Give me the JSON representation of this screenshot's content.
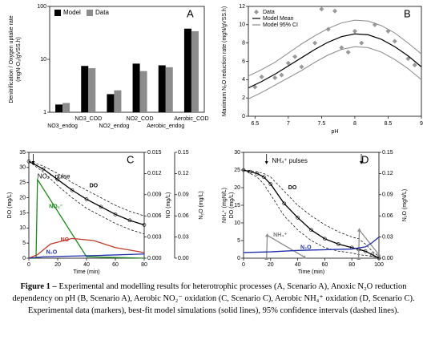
{
  "chart_data": [
    {
      "type": "bar",
      "label": "A",
      "log_y": true,
      "ylabel": [
        "Denitrification / Oxygen uptake rate",
        "(mgN-O₂/gVSS.h)"
      ],
      "categories": [
        "NO3_endog",
        "NO3_COD",
        "NO2_endog",
        "NO2_COD",
        "Aerobic_endog",
        "Aerobic_COD"
      ],
      "series": [
        {
          "name": "Model",
          "color": "#000000",
          "values": [
            1.4,
            7.5,
            2.2,
            8.3,
            7.7,
            38
          ]
        },
        {
          "name": "Data",
          "color": "#8c8c8c",
          "values": [
            1.5,
            6.8,
            2.6,
            6.0,
            7.1,
            34
          ]
        }
      ],
      "ylim": [
        1,
        100
      ],
      "yticks": [
        1,
        10,
        100
      ],
      "legend": "top-left"
    },
    {
      "type": "scatter",
      "label": "B",
      "xlabel": "pH",
      "ylabel": [
        "Maximum N₂O reduction rate (mgN/gVSS.h)"
      ],
      "xlim": [
        6.4,
        9.0
      ],
      "xticks": [
        6.5,
        7,
        7.5,
        8,
        8.5,
        9
      ],
      "ylim": [
        0,
        12
      ],
      "yticks": [
        0,
        2,
        4,
        6,
        8,
        10,
        12
      ],
      "series": [
        {
          "name": "Data",
          "color": "#999999",
          "marker": "diamond",
          "x": [
            6.5,
            6.6,
            6.8,
            6.9,
            7.0,
            7.1,
            7.2,
            7.4,
            7.5,
            7.6,
            7.7,
            7.8,
            7.9,
            8.0,
            8.1,
            8.3,
            8.5,
            8.6,
            8.8,
            8.9
          ],
          "values": [
            3.2,
            4.3,
            4.2,
            4.5,
            5.8,
            6.5,
            5.4,
            8.0,
            11.7,
            9.5,
            11.5,
            7.5,
            7.0,
            9.3,
            8.0,
            10.0,
            9.3,
            8.2,
            6.3,
            5.6
          ]
        },
        {
          "name": "Model Mean",
          "color": "#000000",
          "x": [
            6.4,
            6.6,
            6.8,
            7.0,
            7.2,
            7.4,
            7.6,
            7.8,
            8.0,
            8.2,
            8.4,
            8.6,
            8.8,
            9.0
          ],
          "values": [
            3.1,
            3.8,
            4.6,
            5.5,
            6.4,
            7.3,
            8.1,
            8.7,
            9.0,
            8.9,
            8.4,
            7.6,
            6.6,
            5.4
          ]
        },
        {
          "name": "Model 95% CI",
          "color": "#888888",
          "x": [
            6.4,
            6.6,
            6.8,
            7.0,
            7.2,
            7.4,
            7.6,
            7.8,
            8.0,
            8.2,
            8.4,
            8.6,
            8.8,
            9.0
          ],
          "upper": [
            4.4,
            5.1,
            5.9,
            6.9,
            7.9,
            8.8,
            9.6,
            10.2,
            10.5,
            10.4,
            9.9,
            9.1,
            8.0,
            6.8
          ],
          "lower": [
            1.9,
            2.6,
            3.4,
            4.2,
            5.0,
            5.9,
            6.7,
            7.3,
            7.6,
            7.5,
            7.0,
            6.2,
            5.2,
            4.0
          ]
        }
      ],
      "legend": "top-left"
    },
    {
      "type": "timeseries",
      "label": "C",
      "xlabel": "Time (min)",
      "ylabel": [
        "DO (mg/L)"
      ],
      "y2label": "NO (mg/L)",
      "y3label": "N₂O (mg/L)",
      "xlim": [
        0,
        80
      ],
      "xticks": [
        0,
        20,
        40,
        60,
        80
      ],
      "ylim": [
        0,
        35
      ],
      "yticks": [
        0,
        5,
        10,
        15,
        20,
        25,
        30,
        35
      ],
      "y2lim": [
        0,
        0.015
      ],
      "y2ticks": [
        {
          "value": 0,
          "label": "0.000"
        },
        0.003,
        0.006,
        0.009,
        0.012,
        0.015
      ],
      "y3lim": [
        0,
        0.15
      ],
      "y3ticks": [
        {
          "value": 0,
          "label": "0.00"
        },
        0.03,
        0.06,
        0.09,
        0.12,
        0.15
      ],
      "annotations": [
        "NO₂⁻ pulse",
        "DO",
        "NO₂⁻",
        "NO",
        "N₂O"
      ],
      "series": [
        {
          "color": "#000000",
          "marker": "circle",
          "x": [
            0,
            10,
            20,
            30,
            40,
            50,
            60,
            70,
            80
          ],
          "values": [
            32,
            29.5,
            26,
            22.5,
            19.5,
            17,
            14.5,
            12.5,
            11
          ]
        },
        {
          "color": "#000000",
          "dashed": true,
          "x": [
            0,
            10,
            20,
            30,
            40,
            50,
            60,
            70,
            80
          ],
          "values": [
            32,
            30.5,
            28,
            25,
            22.5,
            20,
            17.5,
            15.5,
            14
          ]
        },
        {
          "color": "#000000",
          "dashed": true,
          "x": [
            0,
            10,
            20,
            30,
            40,
            50,
            60,
            70,
            80
          ],
          "values": [
            32,
            28.5,
            24,
            20,
            16.5,
            14,
            11.5,
            9.5,
            8
          ]
        },
        {
          "color": "#1a8a1a",
          "x": [
            0,
            5,
            6,
            40,
            80
          ],
          "values": [
            0,
            0,
            26,
            0.5,
            0
          ]
        },
        {
          "color": "#c0392b",
          "axis": "y2",
          "x": [
            0,
            6,
            15,
            30,
            45,
            60,
            80
          ],
          "values": [
            0,
            0.0005,
            0.002,
            0.0028,
            0.0025,
            0.0015,
            0.0008
          ]
        },
        {
          "color": "#1f2fa8",
          "axis": "y3",
          "x": [
            0,
            10,
            30,
            50,
            80
          ],
          "values": [
            0,
            0.002,
            0.003,
            0.004,
            0.006
          ]
        }
      ]
    },
    {
      "type": "timeseries",
      "label": "D",
      "xlabel": "Time (min)",
      "ylabel": [
        "NH₄⁺ (mgN/L)",
        "DO (mg/L)"
      ],
      "y2label": "N₂O (mgN/L)",
      "xlim": [
        0,
        100
      ],
      "xticks": [
        0,
        20,
        40,
        60,
        80,
        100
      ],
      "ylim": [
        0,
        30
      ],
      "yticks": [
        0,
        5,
        10,
        15,
        20,
        25,
        30
      ],
      "y2lim": [
        0,
        0.15
      ],
      "y2ticks": [
        {
          "value": 0,
          "label": "0.00"
        },
        0.03,
        0.06,
        0.09,
        0.12,
        0.15
      ],
      "annotations": [
        "NH₄⁺ pulses",
        "DO",
        "NH₄⁺",
        "N₂O"
      ],
      "series": [
        {
          "color": "#000000",
          "marker": "circle",
          "x": [
            0,
            5,
            10,
            15,
            20,
            30,
            40,
            50,
            60,
            70,
            80,
            85,
            90,
            95,
            100
          ],
          "values": [
            25,
            24.5,
            24,
            23,
            21,
            15.5,
            11.5,
            8,
            5.5,
            4,
            3,
            2.5,
            2,
            1,
            0
          ]
        },
        {
          "color": "#000000",
          "dashed": true,
          "x": [
            0,
            5,
            10,
            15,
            20,
            30,
            40,
            50,
            60,
            70,
            80,
            85,
            90,
            95,
            100
          ],
          "values": [
            25,
            24.8,
            24.5,
            24,
            23,
            19,
            15,
            12,
            9.5,
            7.5,
            6,
            5.5,
            4,
            2,
            0.5
          ]
        },
        {
          "color": "#000000",
          "dashed": true,
          "x": [
            0,
            5,
            10,
            15,
            20,
            30,
            40,
            50,
            60,
            70,
            80,
            85,
            90,
            95,
            100
          ],
          "values": [
            25,
            24,
            23,
            21,
            18,
            12,
            8,
            5,
            3,
            2,
            1.5,
            1,
            0.8,
            0.5,
            0
          ]
        },
        {
          "color": "#8c8c8c",
          "marker": "triangle",
          "x": [
            17,
            17.5,
            45,
            46,
            85,
            85.5,
            100
          ],
          "values": [
            0,
            6.5,
            0.3,
            null,
            0,
            8,
            1
          ]
        },
        {
          "color": "#1f2fa8",
          "axis": "y2",
          "x": [
            0,
            20,
            40,
            60,
            80,
            90,
            95,
            100
          ],
          "values": [
            0.008,
            0.009,
            0.011,
            0.012,
            0.013,
            0.016,
            0.022,
            0.03
          ]
        }
      ]
    }
  ],
  "caption": {
    "lead": "Figure 1 –",
    "text": "Experimental and modelling results for heterotrophic processes (A, Scenario A), Anoxic N₂O reduction dependency on pH (B, Scenario A), Aerobic NO₂⁻ oxidation (C, Scenario C), Aerobic NH₄⁺ oxidation (D, Scenario C). Experimental data (markers), best-fit model simulations (solid lines), 95% confidence intervals (dashed lines)."
  }
}
